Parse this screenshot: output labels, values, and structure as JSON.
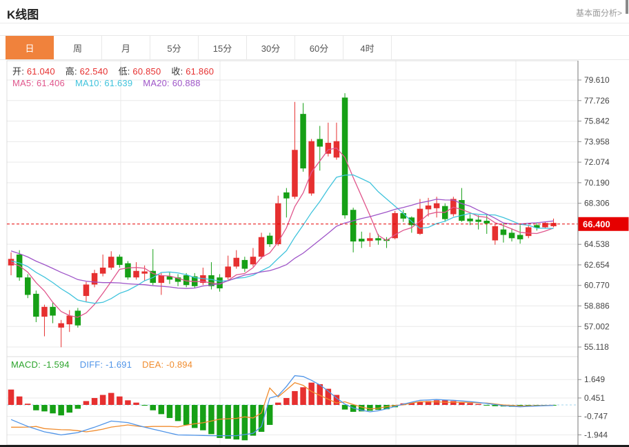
{
  "header": {
    "title": "K线图",
    "link_label": "基本面分析>"
  },
  "tabs": [
    {
      "label": "日",
      "active": true
    },
    {
      "label": "周",
      "active": false
    },
    {
      "label": "月",
      "active": false
    },
    {
      "label": "5分",
      "active": false
    },
    {
      "label": "15分",
      "active": false
    },
    {
      "label": "30分",
      "active": false
    },
    {
      "label": "60分",
      "active": false
    },
    {
      "label": "4时",
      "active": false
    }
  ],
  "legend": {
    "ohlc": [
      {
        "label": "开:",
        "value": "61.040"
      },
      {
        "label": "高:",
        "value": "62.540"
      },
      {
        "label": "低:",
        "value": "60.850"
      },
      {
        "label": "收:",
        "value": "61.860"
      }
    ],
    "ma": [
      {
        "label": "MA5:",
        "value": "61.406",
        "color": "#e0558c"
      },
      {
        "label": "MA10:",
        "value": "61.639",
        "color": "#3fc3dc"
      },
      {
        "label": "MA20:",
        "value": "60.888",
        "color": "#9e54c8"
      }
    ],
    "macd": [
      {
        "label": "MACD:",
        "value": "-1.594",
        "color": "#2ca42c"
      },
      {
        "label": "DIFF:",
        "value": "-1.691",
        "color": "#4f94e8"
      },
      {
        "label": "DEA:",
        "value": "-0.894",
        "color": "#f08c2e"
      }
    ]
  },
  "chart_data": {
    "type": "candlestick",
    "current_price": "66.400",
    "price_ticks": [
      "79.610",
      "77.726",
      "75.842",
      "73.958",
      "72.074",
      "70.190",
      "68.306",
      "64.538",
      "62.654",
      "60.770",
      "58.886",
      "57.002",
      "55.118"
    ],
    "macd_ticks": [
      "1.649",
      "0.451",
      "-0.747",
      "-1.944"
    ],
    "candles_ohlc": [
      [
        62.6,
        63.8,
        61.7,
        63.2
      ],
      [
        63.6,
        64.0,
        61.2,
        61.5
      ],
      [
        61.5,
        61.8,
        59.6,
        59.9
      ],
      [
        60.0,
        60.3,
        57.4,
        57.9
      ],
      [
        57.9,
        59.0,
        56.1,
        58.8
      ],
      [
        58.8,
        59.2,
        57.3,
        58.0
      ],
      [
        56.9,
        57.6,
        55.1,
        57.3
      ],
      [
        57.2,
        58.5,
        56.5,
        58.0
      ],
      [
        58.45,
        58.7,
        56.9,
        57.1
      ],
      [
        59.8,
        61.1,
        59.3,
        60.85
      ],
      [
        60.85,
        62.2,
        60.6,
        61.9
      ],
      [
        61.85,
        63.6,
        61.6,
        62.4
      ],
      [
        62.4,
        63.9,
        62.2,
        63.4
      ],
      [
        63.4,
        63.6,
        62.4,
        62.65
      ],
      [
        62.8,
        63.0,
        61.3,
        61.5
      ],
      [
        61.5,
        62.9,
        61.3,
        62.1
      ],
      [
        61.85,
        62.6,
        61.2,
        62.05
      ],
      [
        62.1,
        64.1,
        60.8,
        61.0
      ],
      [
        61.0,
        61.9,
        59.9,
        61.7
      ],
      [
        61.6,
        62.0,
        60.9,
        61.3
      ],
      [
        61.5,
        61.8,
        60.7,
        61.1
      ],
      [
        61.7,
        61.9,
        60.6,
        60.8
      ],
      [
        61.6,
        61.9,
        60.5,
        60.7
      ],
      [
        61.0,
        62.4,
        60.8,
        61.7
      ],
      [
        61.7,
        62.9,
        60.4,
        60.7
      ],
      [
        61.5,
        61.8,
        60.2,
        60.5
      ],
      [
        61.5,
        63.5,
        61.3,
        62.5
      ],
      [
        62.5,
        64.0,
        62.3,
        63.3
      ],
      [
        63.1,
        63.4,
        62.0,
        62.3
      ],
      [
        62.7,
        64.2,
        62.5,
        63.4
      ],
      [
        63.4,
        65.6,
        63.2,
        65.2
      ],
      [
        65.33,
        65.6,
        64.3,
        64.55
      ],
      [
        64.55,
        69.0,
        64.4,
        68.3
      ],
      [
        69.3,
        69.7,
        67.0,
        68.75
      ],
      [
        68.9,
        77.6,
        68.7,
        73.2
      ],
      [
        76.5,
        77.5,
        71.2,
        71.5
      ],
      [
        69.2,
        74.2,
        69.0,
        74.0
      ],
      [
        74.2,
        75.4,
        71.3,
        73.5
      ],
      [
        72.85,
        75.7,
        72.6,
        73.85
      ],
      [
        72.5,
        75.7,
        72.3,
        74.0
      ],
      [
        78.0,
        78.4,
        66.9,
        67.2
      ],
      [
        67.7,
        67.9,
        63.8,
        64.8
      ],
      [
        65.05,
        65.7,
        64.2,
        64.8
      ],
      [
        64.85,
        65.6,
        64.3,
        65.1
      ],
      [
        65.1,
        65.5,
        64.5,
        64.9
      ],
      [
        65.0,
        65.2,
        64.2,
        64.85
      ],
      [
        65.1,
        67.6,
        65.0,
        67.4
      ],
      [
        67.4,
        67.7,
        66.6,
        66.9
      ],
      [
        67.0,
        67.1,
        65.6,
        66.3
      ],
      [
        65.5,
        68.7,
        65.4,
        67.8
      ],
      [
        67.75,
        68.8,
        67.1,
        68.1
      ],
      [
        67.85,
        68.9,
        67.0,
        68.3
      ],
      [
        68.05,
        68.3,
        66.6,
        66.85
      ],
      [
        67.3,
        68.9,
        67.1,
        68.7
      ],
      [
        68.6,
        69.7,
        66.6,
        66.7
      ],
      [
        66.9,
        67.3,
        66.3,
        66.65
      ],
      [
        66.8,
        67.2,
        65.9,
        66.6
      ],
      [
        66.7,
        67.2,
        65.5,
        66.45
      ],
      [
        64.9,
        66.4,
        64.5,
        66.2
      ],
      [
        65.9,
        66.5,
        64.7,
        65.4
      ],
      [
        65.6,
        66.0,
        64.8,
        65.1
      ],
      [
        65.4,
        66.3,
        64.6,
        65.0
      ],
      [
        65.3,
        66.3,
        65.1,
        66.1
      ],
      [
        66.3,
        66.5,
        65.8,
        66.05
      ],
      [
        66.1,
        66.6,
        66.0,
        66.5
      ],
      [
        66.2,
        66.9,
        66.1,
        66.5
      ]
    ],
    "macd_hist": [
      1.0,
      0.55,
      0.08,
      -0.35,
      -0.42,
      -0.55,
      -0.68,
      -0.5,
      -0.25,
      0.25,
      0.45,
      0.65,
      0.78,
      0.55,
      0.3,
      0.15,
      -0.05,
      -0.35,
      -0.6,
      -0.85,
      -1.05,
      -1.3,
      -1.5,
      -1.65,
      -1.9,
      -2.15,
      -2.2,
      -2.25,
      -2.3,
      -2.0,
      -1.75,
      -1.3,
      0.15,
      0.45,
      0.9,
      1.15,
      1.45,
      1.35,
      1.05,
      0.65,
      -0.3,
      -0.45,
      -0.42,
      -0.38,
      -0.32,
      -0.28,
      -0.15,
      0.1,
      0.12,
      0.18,
      0.25,
      0.3,
      0.3,
      0.25,
      0.18,
      0.12,
      0.06,
      -0.04,
      -0.08,
      -0.1,
      -0.12,
      -0.1,
      -0.07,
      -0.05,
      -0.03,
      -0.02
    ],
    "diff_waypoints": [
      [
        0,
        -0.95
      ],
      [
        2,
        -1.4
      ],
      [
        4,
        -1.75
      ],
      [
        6,
        -1.95
      ],
      [
        8,
        -1.8
      ],
      [
        10,
        -1.45
      ],
      [
        12,
        -1.05
      ],
      [
        14,
        -1.15
      ],
      [
        16,
        -1.45
      ],
      [
        18,
        -1.7
      ],
      [
        20,
        -1.95
      ],
      [
        24,
        -2.0
      ],
      [
        27,
        -2.0
      ],
      [
        29,
        -1.85
      ],
      [
        30,
        -1.4
      ],
      [
        31,
        0.45
      ],
      [
        32,
        0.6
      ],
      [
        33,
        1.2
      ],
      [
        34,
        1.9
      ],
      [
        35,
        1.85
      ],
      [
        36,
        1.6
      ],
      [
        37,
        1.3
      ],
      [
        38,
        0.9
      ],
      [
        39,
        0.45
      ],
      [
        40,
        0.05
      ],
      [
        41,
        -0.2
      ],
      [
        42,
        -0.35
      ],
      [
        43,
        -0.45
      ],
      [
        44,
        -0.38
      ],
      [
        45,
        -0.25
      ],
      [
        46,
        -0.1
      ],
      [
        47,
        0.05
      ],
      [
        48,
        0.18
      ],
      [
        49,
        0.3
      ],
      [
        51,
        0.35
      ],
      [
        53,
        0.3
      ],
      [
        55,
        0.22
      ],
      [
        57,
        0.1
      ],
      [
        59,
        -0.05
      ],
      [
        61,
        -0.12
      ],
      [
        63,
        -0.07
      ],
      [
        65,
        -0.03
      ]
    ],
    "ma_seed_closes": [
      66.8,
      66.4,
      66.0,
      65.6,
      65.2,
      64.9,
      64.6,
      64.3,
      64.0,
      63.8,
      63.6,
      63.4,
      63.3,
      63.2,
      63.1,
      63.0,
      62.9,
      62.8,
      62.7,
      62.6
    ],
    "ma_periods": [
      5,
      10,
      20
    ],
    "colors": {
      "up": "#e63030",
      "down": "#16a016",
      "ma5": "#e0558c",
      "ma10": "#3fc3dc",
      "ma20": "#9e54c8",
      "diff": "#4f94e8",
      "dea": "#f08c2e",
      "price_tag": "#e60000",
      "grid": "#e9e9e9",
      "frame": "#dcdcdc",
      "axis_line": "#8c8c8c",
      "tick_text": "#444444",
      "zero_dash": "#9fd4ec",
      "tab_active": "#f0823c"
    }
  }
}
